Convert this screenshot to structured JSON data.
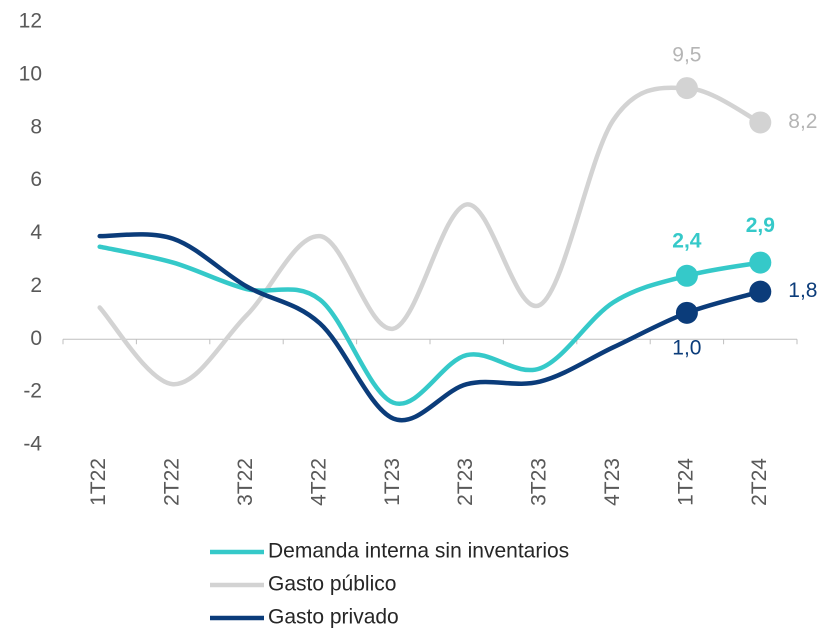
{
  "chart_data": {
    "type": "line",
    "categories": [
      "1T22",
      "2T22",
      "3T22",
      "4T22",
      "1T23",
      "2T23",
      "3T23",
      "4T23",
      "1T24",
      "2T24"
    ],
    "series": [
      {
        "name": "Demanda interna sin inventarios",
        "color": "#35c9c9",
        "values": [
          3.5,
          2.9,
          1.9,
          1.5,
          -2.4,
          -0.6,
          -1.1,
          1.4,
          2.4,
          2.9
        ],
        "value_labels": [
          null,
          null,
          null,
          null,
          null,
          null,
          null,
          null,
          "2,4",
          "2,9"
        ]
      },
      {
        "name": "Gasto público",
        "color": "#d3d3d3",
        "values": [
          1.2,
          -1.7,
          0.9,
          3.9,
          0.4,
          5.1,
          1.3,
          8.3,
          9.5,
          8.2
        ],
        "value_labels": [
          null,
          null,
          null,
          null,
          null,
          null,
          null,
          null,
          "9,5",
          "8,2"
        ]
      },
      {
        "name": "Gasto privado",
        "color": "#0b3c7a",
        "values": [
          3.9,
          3.8,
          2.0,
          0.6,
          -3.0,
          -1.7,
          -1.6,
          -0.3,
          1.0,
          1.8
        ],
        "value_labels": [
          null,
          null,
          null,
          null,
          null,
          null,
          null,
          null,
          "1,0",
          "1,8"
        ]
      }
    ],
    "ylim": [
      -4,
      12
    ],
    "yticks": [
      -4,
      -2,
      0,
      2,
      4,
      6,
      8,
      10,
      12
    ],
    "grid": false
  }
}
